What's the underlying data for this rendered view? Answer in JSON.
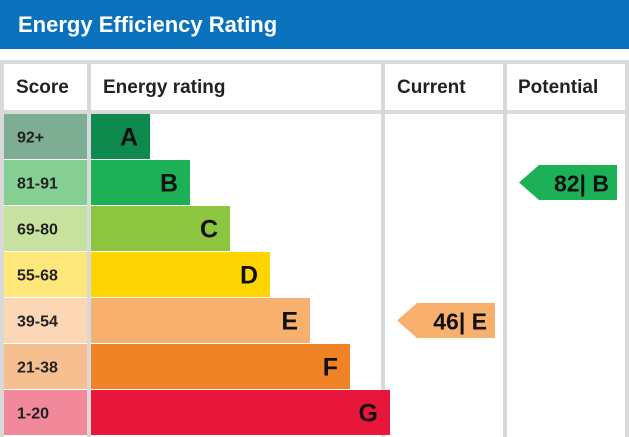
{
  "header": {
    "title": "Energy Efficiency Rating"
  },
  "columns": {
    "score": "Score",
    "rating": "Energy rating",
    "current": "Current",
    "potential": "Potential"
  },
  "chart_data": {
    "type": "bar",
    "title": "Energy Efficiency Rating",
    "bands": [
      {
        "letter": "A",
        "range": "92+",
        "min": 92,
        "max": 100,
        "color": "#0f8a4f",
        "score_bg": "#7dae93"
      },
      {
        "letter": "B",
        "range": "81-91",
        "min": 81,
        "max": 91,
        "color": "#1db157",
        "score_bg": "#86cf94"
      },
      {
        "letter": "C",
        "range": "69-80",
        "min": 69,
        "max": 80,
        "color": "#8cc63f",
        "score_bg": "#c6e29e"
      },
      {
        "letter": "D",
        "range": "55-68",
        "min": 55,
        "max": 68,
        "color": "#ffd500",
        "score_bg": "#fde67a"
      },
      {
        "letter": "E",
        "range": "39-54",
        "min": 39,
        "max": 54,
        "color": "#f8b06e",
        "score_bg": "#fbd7b5"
      },
      {
        "letter": "F",
        "range": "21-38",
        "min": 21,
        "max": 38,
        "color": "#ef8326",
        "score_bg": "#f6bf90"
      },
      {
        "letter": "G",
        "range": "1-20",
        "min": 1,
        "max": 20,
        "color": "#e9163c",
        "score_bg": "#f1899a"
      }
    ],
    "current": {
      "value": 46,
      "letter": "E",
      "label": "46| E",
      "color": "#f8b06e"
    },
    "potential": {
      "value": 82,
      "letter": "B",
      "label": "82| B",
      "color": "#1db157"
    }
  }
}
